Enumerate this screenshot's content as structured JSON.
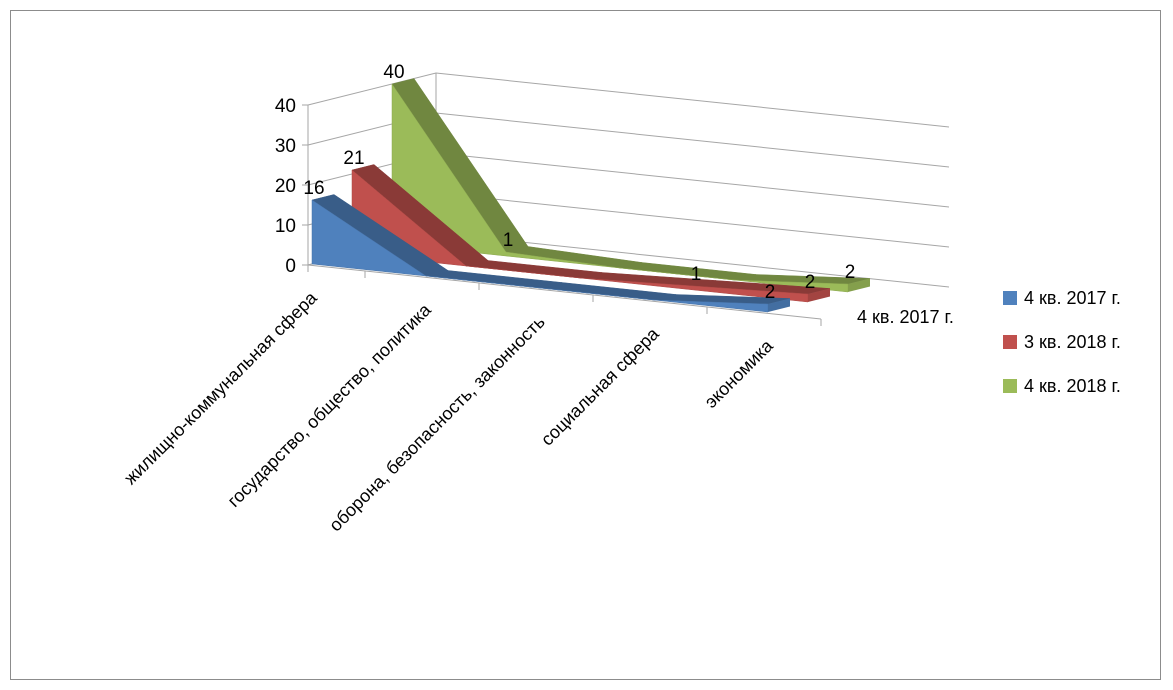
{
  "chart_data": {
    "type": "area",
    "view": "3d",
    "categories": [
      "жилищно-коммунальная сфера",
      "государство, общество, политика",
      "оборона, безопасность, законность",
      "социальная сфера",
      "экономика"
    ],
    "series": [
      {
        "name": "4 кв. 2017 г.",
        "color": "#4f81bd",
        "values": [
          16,
          0,
          0,
          0,
          2
        ],
        "labels": [
          "16",
          "",
          "",
          "",
          "2"
        ]
      },
      {
        "name": "3 кв. 2018 г.",
        "color": "#c0504d",
        "values": [
          21,
          0,
          0,
          1,
          2
        ],
        "labels": [
          "21",
          "",
          "",
          "1",
          "2"
        ]
      },
      {
        "name": "4 кв. 2018 г.",
        "color": "#9bbb59",
        "values": [
          40,
          1,
          0,
          0,
          2
        ],
        "labels": [
          "40",
          "1",
          "",
          "",
          "2"
        ]
      }
    ],
    "depth_axis_labels": [
      "4 кв. 2017 г."
    ],
    "yticks": [
      "0",
      "10",
      "20",
      "30",
      "40"
    ],
    "ylim": [
      0,
      40
    ],
    "grid": true,
    "legend_position": "right"
  }
}
